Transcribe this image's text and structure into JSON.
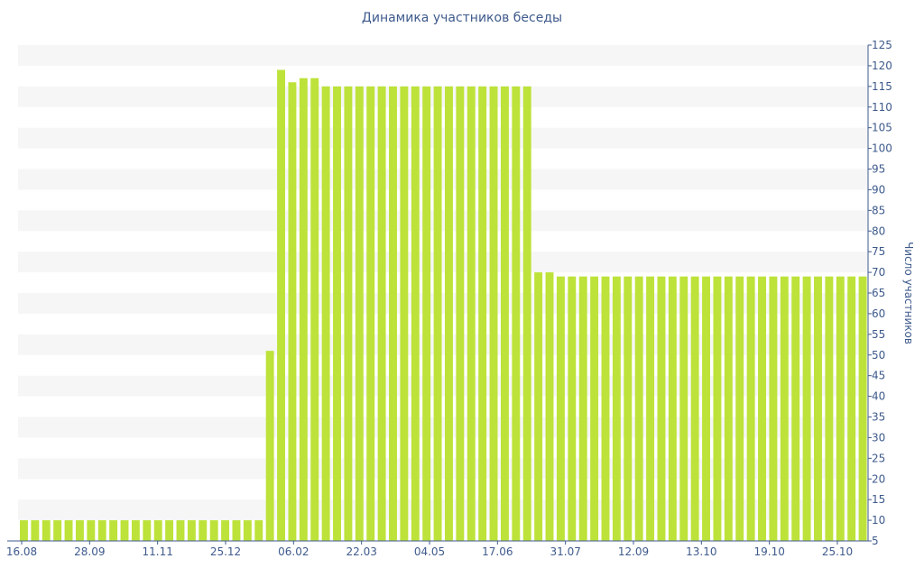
{
  "chart_data": {
    "type": "bar",
    "title": "Динамика участников беседы",
    "xlabel": "",
    "ylabel": "Число участников",
    "ylim": [
      5,
      125
    ],
    "yticks": [
      5,
      10,
      15,
      20,
      25,
      30,
      35,
      40,
      45,
      50,
      55,
      60,
      65,
      70,
      75,
      80,
      85,
      90,
      95,
      100,
      105,
      110,
      115,
      120,
      125
    ],
    "x_tick_labels": [
      "16.08",
      "28.09",
      "11.11",
      "25.12",
      "06.02",
      "22.03",
      "04.05",
      "17.06",
      "31.07",
      "12.09",
      "13.10",
      "19.10",
      "25.10"
    ],
    "y_axis_position": "right",
    "grid": "horizontal-bands",
    "bar_color": "#bde23a",
    "band_color": "#f6f6f6",
    "values": [
      10,
      10,
      10,
      10,
      10,
      10,
      10,
      10,
      10,
      10,
      10,
      10,
      10,
      10,
      10,
      10,
      10,
      10,
      10,
      10,
      10,
      10,
      51,
      119,
      116,
      117,
      117,
      115,
      115,
      115,
      115,
      115,
      115,
      115,
      115,
      115,
      115,
      115,
      115,
      115,
      115,
      115,
      115,
      115,
      115,
      115,
      70,
      70,
      69,
      69,
      69,
      69,
      69,
      69,
      69,
      69,
      69,
      69,
      69,
      69,
      69,
      69,
      69,
      69,
      69,
      69,
      69,
      69,
      69,
      69,
      69,
      69,
      69,
      69,
      69,
      69
    ]
  }
}
